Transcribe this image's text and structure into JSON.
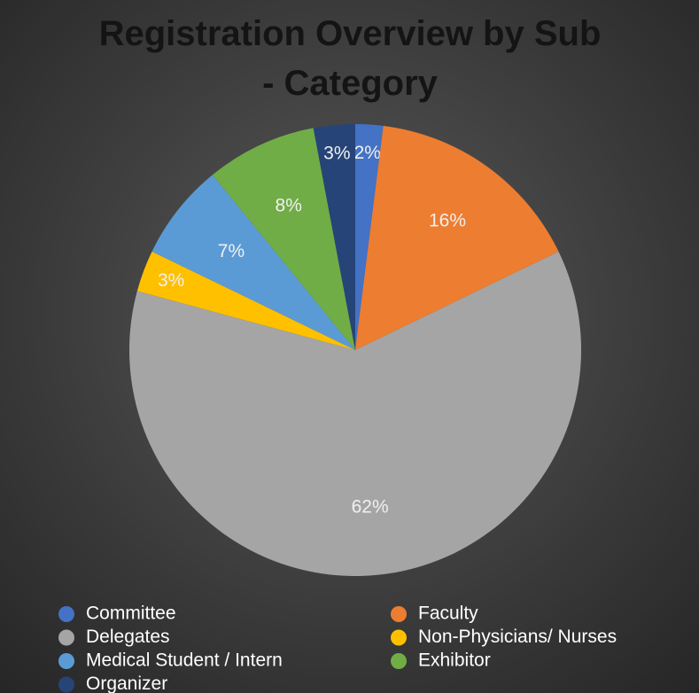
{
  "chart_data": {
    "type": "pie",
    "title": "Registration Overview by Sub - Category",
    "categories": [
      "Committee",
      "Faculty",
      "Delegates",
      "Non-Physicians/ Nurses",
      "Medical Student / Intern",
      "Exhibitor",
      "Organizer"
    ],
    "values": [
      2,
      16,
      62,
      3,
      7,
      8,
      3
    ],
    "value_labels": [
      "2%",
      "16%",
      "62%",
      "3%",
      "7%",
      "8%",
      "3%"
    ],
    "colors": [
      "#4472c4",
      "#ed7d31",
      "#a5a5a5",
      "#ffc000",
      "#5b9bd5",
      "#70ad47",
      "#264478"
    ],
    "legend": "bottom"
  }
}
